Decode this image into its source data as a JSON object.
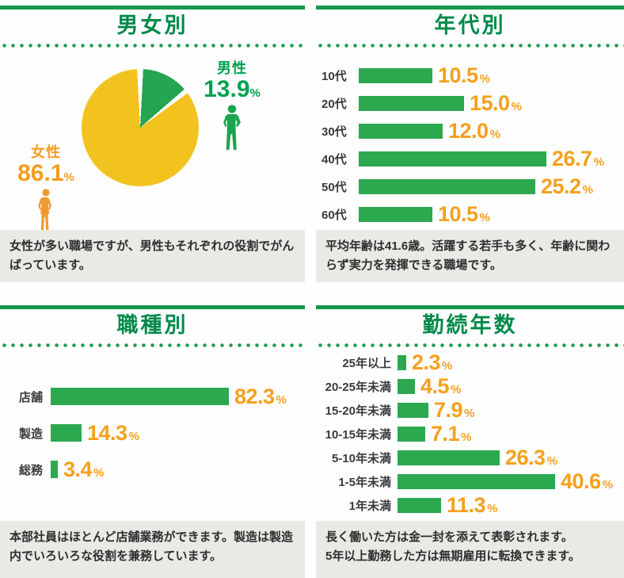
{
  "colors": {
    "title_green": "#00894a",
    "bar_green": "#2ca84f",
    "line_green": "#15984a",
    "dot_green": "#1a9b4c",
    "value_orange": "#f5a01d",
    "pie_yellow": "#f2c31f",
    "pie_green": "#24a550",
    "note_bg": "#e9e9e6"
  },
  "chart_data": [
    {
      "type": "pie",
      "title": "男女別",
      "labels": [
        "男性",
        "女性"
      ],
      "values": [
        13.9,
        86.1
      ],
      "value_labels": [
        "13.9",
        "86.1"
      ],
      "unit": "%",
      "slice_colors": [
        "#24a550",
        "#f2c31f"
      ],
      "note": "女性が多い職場ですが、男性もそれぞれの役割でがんばっています。"
    },
    {
      "type": "bar",
      "title": "年代別",
      "categories": [
        "10代",
        "20代",
        "30代",
        "40代",
        "50代",
        "60代"
      ],
      "values": [
        10.5,
        15.0,
        12.0,
        26.7,
        25.2,
        10.5
      ],
      "unit": "%",
      "xlim": [
        0,
        30
      ],
      "note": "平均年齢は41.6歳。活躍する若手も多く、年齢に関わらず実力を発揮できる職場です。"
    },
    {
      "type": "bar",
      "title": "職種別",
      "categories": [
        "店舗",
        "製造",
        "総務"
      ],
      "values": [
        82.3,
        14.3,
        3.4
      ],
      "unit": "%",
      "xlim": [
        0,
        90
      ],
      "note": "本部社員はほとんど店舗業務ができます。製造は製造内でいろいろな役割を兼務しています。"
    },
    {
      "type": "bar",
      "title": "勤続年数",
      "categories": [
        "25年以上",
        "20-25年未満",
        "15-20年未満",
        "10-15年未満",
        "5-10年未満",
        "1-5年未満",
        "1年未満"
      ],
      "values": [
        2.3,
        4.5,
        7.9,
        7.1,
        26.3,
        40.6,
        11.3
      ],
      "unit": "%",
      "xlim": [
        0,
        45
      ],
      "note": "長く働いた方は金一封を添えて表彰されます。\n5年以上勤務した方は無期雇用に転換できます。"
    }
  ]
}
